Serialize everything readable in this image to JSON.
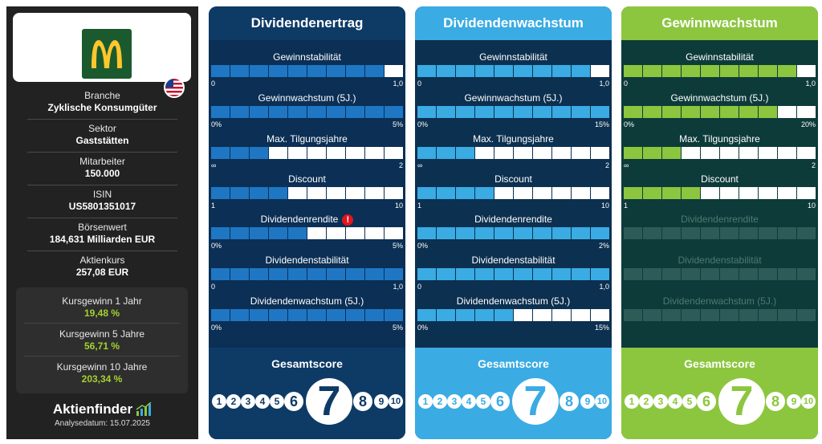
{
  "sidebar": {
    "branche_label": "Branche",
    "branche_value": "Zyklische Konsumgüter",
    "sektor_label": "Sektor",
    "sektor_value": "Gaststätten",
    "mitarbeiter_label": "Mitarbeiter",
    "mitarbeiter_value": "150.000",
    "isin_label": "ISIN",
    "isin_value": "US5801351017",
    "boersenwert_label": "Börsenwert",
    "boersenwert_value": "184,631 Milliarden EUR",
    "aktienkurs_label": "Aktienkurs",
    "aktienkurs_value": "257,08 EUR",
    "gains": [
      {
        "label": "Kursgewinn 1 Jahr",
        "value": "19,48 %"
      },
      {
        "label": "Kursgewinn 5 Jahre",
        "value": "56,71 %"
      },
      {
        "label": "Kursgewinn 10 Jahre",
        "value": "203,34 %"
      }
    ],
    "brand": "Aktienfinder",
    "date": "Analysedatum: 15.07.2025",
    "logo_icon": "golden-arches-icon",
    "flag_icon": "us-flag-icon"
  },
  "panels": [
    {
      "title": "Dividendenertrag",
      "bg": "#0e3a66",
      "title_bg": "#0e3a66",
      "metric_bg": "#0b2f55",
      "score_bg": "#0e3a66",
      "fill": "#1f77c4",
      "empty": "#ffffff",
      "text_color": "#0e3a66",
      "metrics": [
        {
          "label": "Gewinnstabilität",
          "min": "0",
          "max": "1,0",
          "filled": 9,
          "active": true,
          "warning": false
        },
        {
          "label": "Gewinnwachstum (5J.)",
          "min": "0%",
          "max": "5%",
          "filled": 10,
          "active": true,
          "warning": false
        },
        {
          "label": "Max. Tilgungsjahre",
          "min": "∞",
          "max": "2",
          "filled": 3,
          "active": true,
          "warning": false
        },
        {
          "label": "Discount",
          "min": "1",
          "max": "10",
          "filled": 4,
          "active": true,
          "warning": false
        },
        {
          "label": "Dividendenrendite",
          "min": "0%",
          "max": "5%",
          "filled": 5,
          "active": true,
          "warning": true
        },
        {
          "label": "Dividendenstabilität",
          "min": "0",
          "max": "1,0",
          "filled": 10,
          "active": true,
          "warning": false
        },
        {
          "label": "Dividendenwachstum (5J.)",
          "min": "0%",
          "max": "5%",
          "filled": 10,
          "active": true,
          "warning": false
        }
      ],
      "score_title": "Gesamtscore",
      "score": 7
    },
    {
      "title": "Dividendenwachstum",
      "bg": "#3aabe3",
      "title_bg": "#3aabe3",
      "metric_bg": "#0c3050",
      "score_bg": "#3aabe3",
      "fill": "#3aabe3",
      "empty": "#ffffff",
      "text_color": "#3aabe3",
      "metrics": [
        {
          "label": "Gewinnstabilität",
          "min": "0",
          "max": "1,0",
          "filled": 9,
          "active": true,
          "warning": false
        },
        {
          "label": "Gewinnwachstum (5J.)",
          "min": "0%",
          "max": "15%",
          "filled": 10,
          "active": true,
          "warning": false
        },
        {
          "label": "Max. Tilgungsjahre",
          "min": "∞",
          "max": "2",
          "filled": 3,
          "active": true,
          "warning": false
        },
        {
          "label": "Discount",
          "min": "1",
          "max": "10",
          "filled": 4,
          "active": true,
          "warning": false
        },
        {
          "label": "Dividendenrendite",
          "min": "0%",
          "max": "2%",
          "filled": 10,
          "active": true,
          "warning": false
        },
        {
          "label": "Dividendenstabilität",
          "min": "0",
          "max": "1,0",
          "filled": 10,
          "active": true,
          "warning": false
        },
        {
          "label": "Dividendenwachstum (5J.)",
          "min": "0%",
          "max": "15%",
          "filled": 5,
          "active": true,
          "warning": false
        }
      ],
      "score_title": "Gesamtscore",
      "score": 7
    },
    {
      "title": "Gewinnwachstum",
      "bg": "#8cc63f",
      "title_bg": "#8cc63f",
      "metric_bg": "#0d3b3a",
      "score_bg": "#8cc63f",
      "fill": "#8cc63f",
      "empty": "#ffffff",
      "text_color": "#8cc63f",
      "metrics": [
        {
          "label": "Gewinnstabilität",
          "min": "0",
          "max": "1,0",
          "filled": 9,
          "active": true,
          "warning": false
        },
        {
          "label": "Gewinnwachstum (5J.)",
          "min": "0%",
          "max": "20%",
          "filled": 8,
          "active": true,
          "warning": false
        },
        {
          "label": "Max. Tilgungsjahre",
          "min": "∞",
          "max": "2",
          "filled": 3,
          "active": true,
          "warning": false
        },
        {
          "label": "Discount",
          "min": "1",
          "max": "10",
          "filled": 4,
          "active": true,
          "warning": false
        },
        {
          "label": "Dividendenrendite",
          "min": "",
          "max": "",
          "filled": 0,
          "active": false,
          "warning": false
        },
        {
          "label": "Dividendenstabilität",
          "min": "",
          "max": "",
          "filled": 0,
          "active": false,
          "warning": false
        },
        {
          "label": "Dividendenwachstum (5J.)",
          "min": "",
          "max": "",
          "filled": 0,
          "active": false,
          "warning": false
        }
      ],
      "score_title": "Gesamtscore",
      "score": 7
    }
  ]
}
